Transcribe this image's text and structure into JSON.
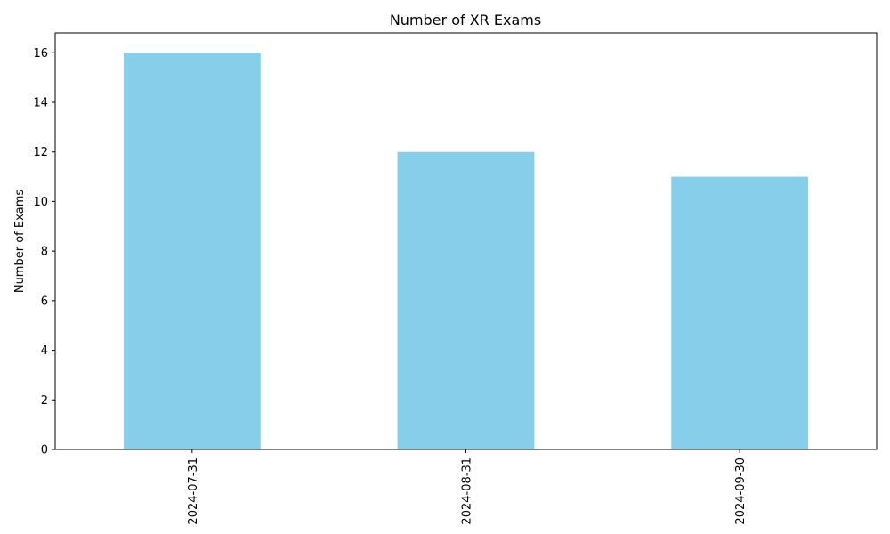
{
  "chart_data": {
    "type": "bar",
    "title": "Number of XR Exams",
    "xlabel": "",
    "ylabel": "Number of Exams",
    "categories": [
      "2024-07-31",
      "2024-08-31",
      "2024-09-30"
    ],
    "values": [
      16,
      12,
      11
    ],
    "ylim": [
      0,
      16.8
    ],
    "yticks": [
      0,
      2,
      4,
      6,
      8,
      10,
      12,
      14,
      16
    ],
    "bar_color": "#87ceeb",
    "grid": false,
    "legend": "none"
  }
}
